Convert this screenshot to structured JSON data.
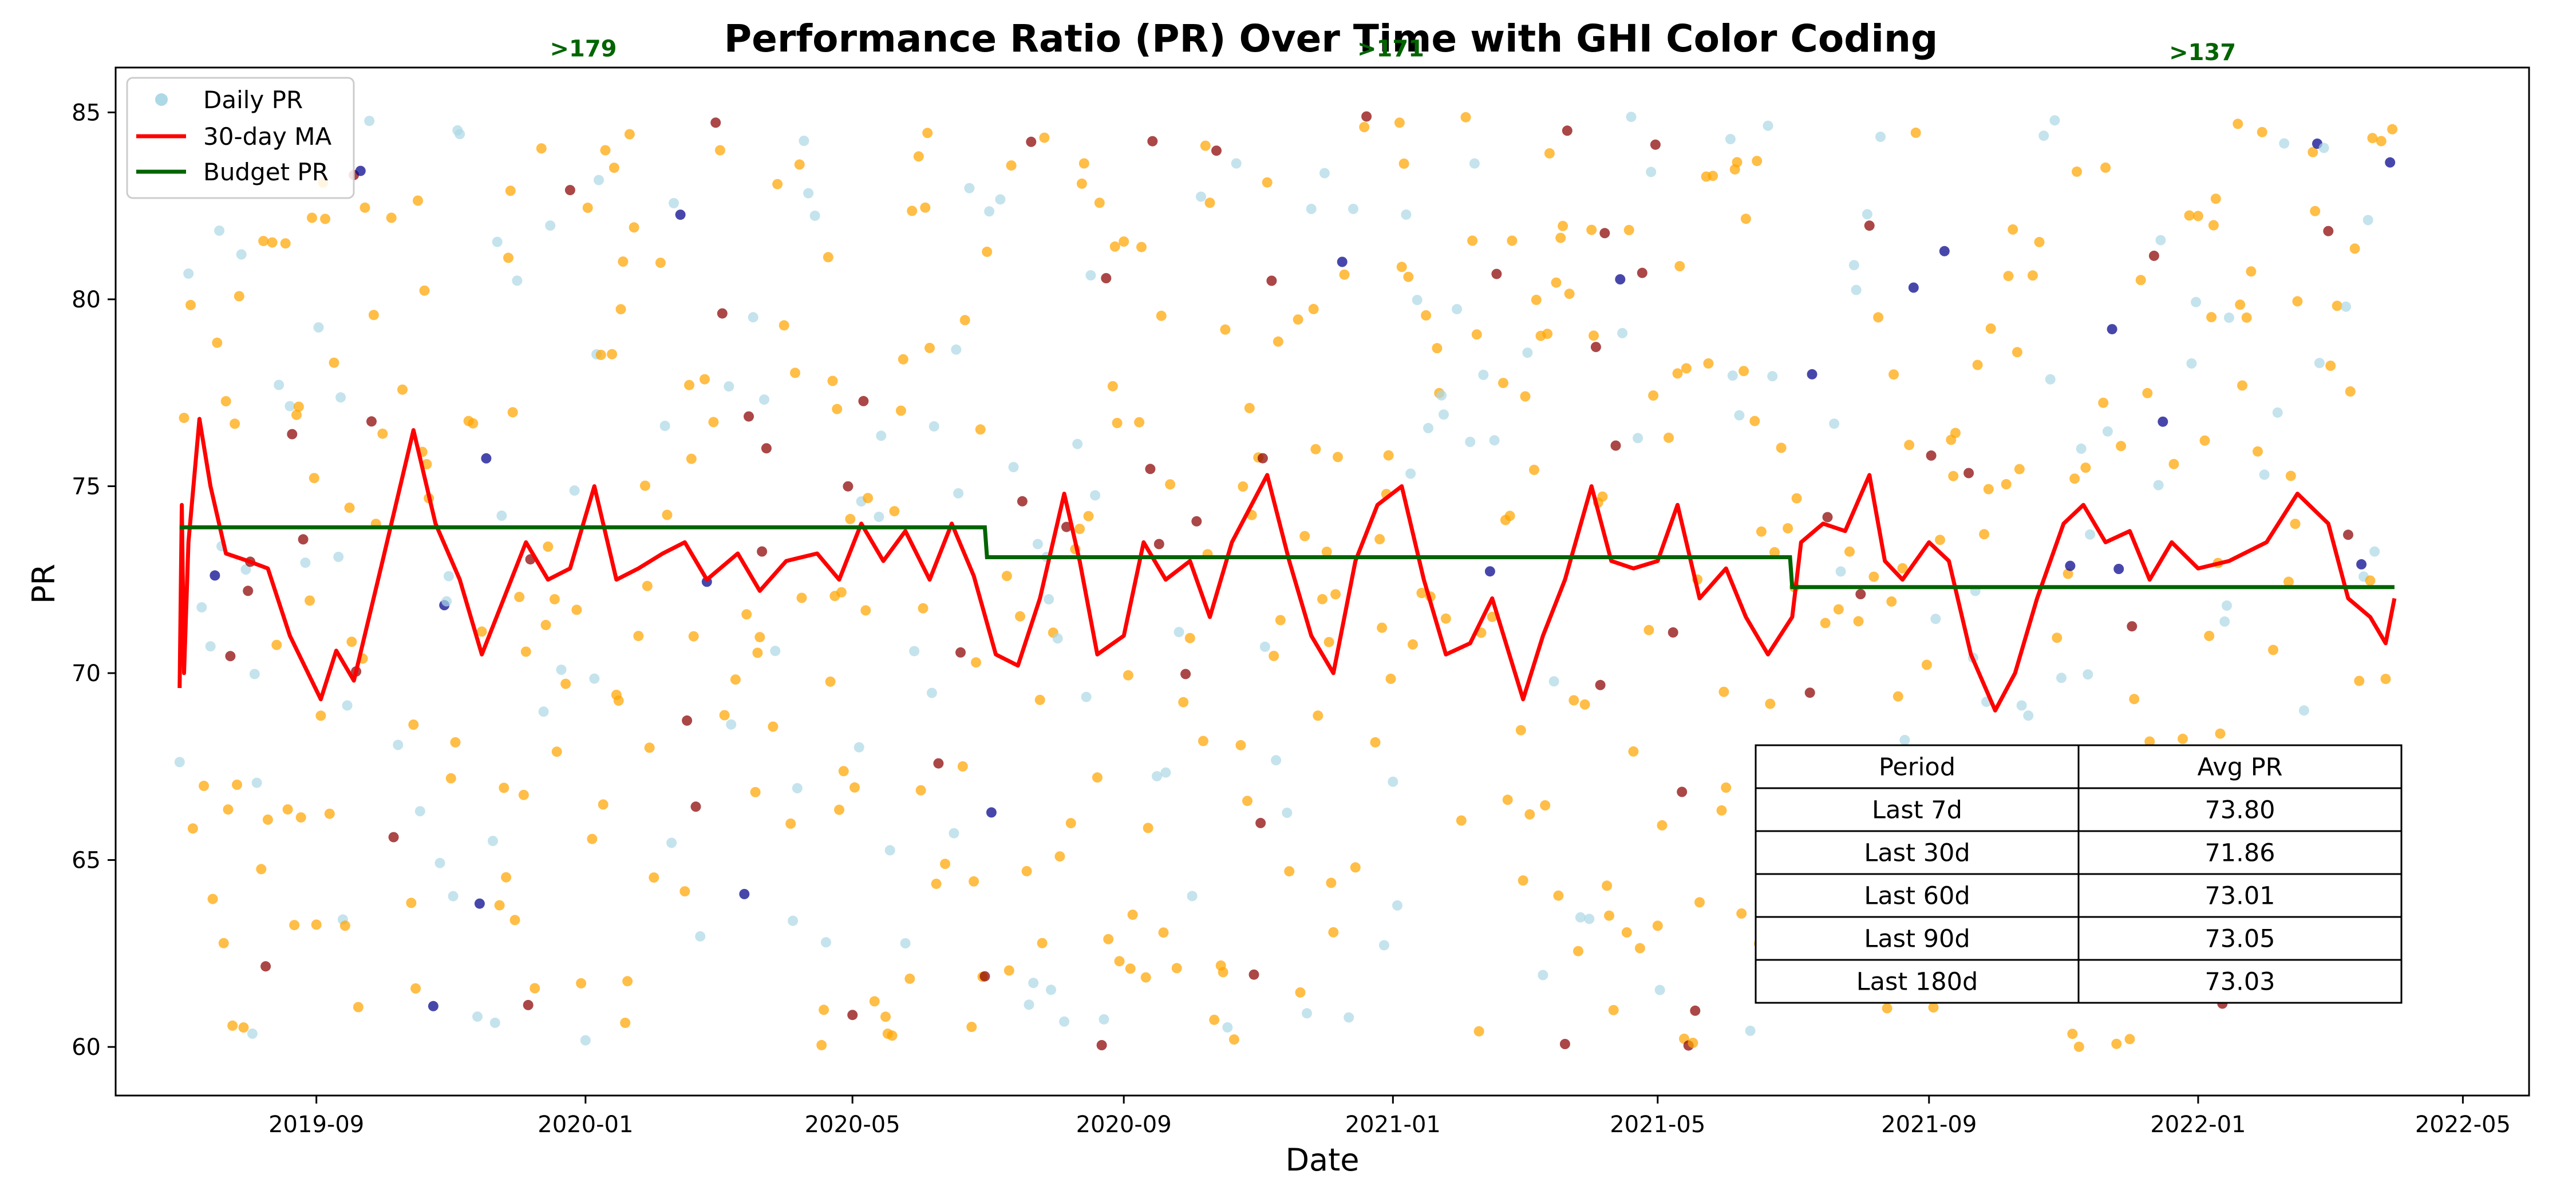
{
  "chart_data": {
    "type": "scatter",
    "title": "Performance Ratio (PR) Over Time with GHI Color Coding",
    "xlabel": "Date",
    "ylabel": "PR",
    "xlim": [
      "2019-06-02",
      "2022-05-31"
    ],
    "ylim": [
      58.7,
      86.2
    ],
    "x_ticks": [
      "2019-09",
      "2020-01",
      "2020-05",
      "2020-09",
      "2021-01",
      "2021-05",
      "2021-09",
      "2022-01",
      "2022-05"
    ],
    "y_ticks": [
      60,
      65,
      70,
      75,
      80,
      85
    ],
    "date_range": [
      "2019-07-01",
      "2022-03-31"
    ],
    "scatter_colors": {
      "low_ghi": "#add8e6",
      "mid_ghi": "#ffa500",
      "high_ghi": "#8b0000",
      "very_high_ghi": "#00008b"
    },
    "series": [
      {
        "name": "Daily PR",
        "type": "scatter",
        "color": "#add8e6",
        "range": [
          60,
          85
        ]
      },
      {
        "name": "30-day MA",
        "type": "line",
        "color": "#ff0000",
        "points": [
          [
            "2019-07-01",
            69.6
          ],
          [
            "2019-07-02",
            74.5
          ],
          [
            "2019-07-03",
            70.0
          ],
          [
            "2019-07-05",
            73.5
          ],
          [
            "2019-07-10",
            76.8
          ],
          [
            "2019-07-15",
            75.0
          ],
          [
            "2019-07-22",
            73.2
          ],
          [
            "2019-08-01",
            73.0
          ],
          [
            "2019-08-10",
            72.8
          ],
          [
            "2019-08-20",
            71.0
          ],
          [
            "2019-09-03",
            69.3
          ],
          [
            "2019-09-10",
            70.6
          ],
          [
            "2019-09-18",
            69.8
          ],
          [
            "2019-10-01",
            73.0
          ],
          [
            "2019-10-15",
            76.5
          ],
          [
            "2019-10-25",
            74.0
          ],
          [
            "2019-11-05",
            72.5
          ],
          [
            "2019-11-15",
            70.5
          ],
          [
            "2019-11-25",
            72.0
          ],
          [
            "2019-12-05",
            73.5
          ],
          [
            "2019-12-15",
            72.5
          ],
          [
            "2019-12-25",
            72.8
          ],
          [
            "2020-01-05",
            75.0
          ],
          [
            "2020-01-15",
            72.5
          ],
          [
            "2020-01-25",
            72.8
          ],
          [
            "2020-02-05",
            73.2
          ],
          [
            "2020-02-15",
            73.5
          ],
          [
            "2020-02-25",
            72.5
          ],
          [
            "2020-03-10",
            73.2
          ],
          [
            "2020-03-20",
            72.2
          ],
          [
            "2020-04-01",
            73.0
          ],
          [
            "2020-04-15",
            73.2
          ],
          [
            "2020-04-25",
            72.5
          ],
          [
            "2020-05-05",
            74.0
          ],
          [
            "2020-05-15",
            73.0
          ],
          [
            "2020-05-25",
            73.8
          ],
          [
            "2020-06-05",
            72.5
          ],
          [
            "2020-06-15",
            74.0
          ],
          [
            "2020-06-25",
            72.6
          ],
          [
            "2020-07-05",
            70.5
          ],
          [
            "2020-07-15",
            70.2
          ],
          [
            "2020-07-25",
            72.0
          ],
          [
            "2020-08-05",
            74.8
          ],
          [
            "2020-08-12",
            73.0
          ],
          [
            "2020-08-20",
            70.5
          ],
          [
            "2020-09-01",
            71.0
          ],
          [
            "2020-09-10",
            73.5
          ],
          [
            "2020-09-20",
            72.5
          ],
          [
            "2020-10-01",
            73.0
          ],
          [
            "2020-10-10",
            71.5
          ],
          [
            "2020-10-20",
            73.5
          ],
          [
            "2020-11-05",
            75.3
          ],
          [
            "2020-11-15",
            73.0
          ],
          [
            "2020-11-25",
            71.0
          ],
          [
            "2020-12-05",
            70.0
          ],
          [
            "2020-12-15",
            73.0
          ],
          [
            "2020-12-25",
            74.5
          ],
          [
            "2021-01-05",
            75.0
          ],
          [
            "2021-01-15",
            72.5
          ],
          [
            "2021-01-25",
            70.5
          ],
          [
            "2021-02-05",
            70.8
          ],
          [
            "2021-02-15",
            72.0
          ],
          [
            "2021-03-01",
            69.3
          ],
          [
            "2021-03-10",
            71.0
          ],
          [
            "2021-03-20",
            72.5
          ],
          [
            "2021-04-01",
            75.0
          ],
          [
            "2021-04-10",
            73.0
          ],
          [
            "2021-04-20",
            72.8
          ],
          [
            "2021-05-01",
            73.0
          ],
          [
            "2021-05-10",
            74.5
          ],
          [
            "2021-05-20",
            72.0
          ],
          [
            "2021-06-01",
            72.8
          ],
          [
            "2021-06-10",
            71.5
          ],
          [
            "2021-06-20",
            70.5
          ],
          [
            "2021-07-01",
            71.5
          ],
          [
            "2021-07-05",
            73.5
          ],
          [
            "2021-07-15",
            74.0
          ],
          [
            "2021-07-25",
            73.8
          ],
          [
            "2021-08-05",
            75.3
          ],
          [
            "2021-08-12",
            73.0
          ],
          [
            "2021-08-20",
            72.5
          ],
          [
            "2021-09-01",
            73.5
          ],
          [
            "2021-09-10",
            73.0
          ],
          [
            "2021-09-20",
            70.5
          ],
          [
            "2021-10-01",
            69.0
          ],
          [
            "2021-10-10",
            70.0
          ],
          [
            "2021-10-20",
            72.0
          ],
          [
            "2021-11-01",
            74.0
          ],
          [
            "2021-11-10",
            74.5
          ],
          [
            "2021-11-20",
            73.5
          ],
          [
            "2021-12-01",
            73.8
          ],
          [
            "2021-12-10",
            72.5
          ],
          [
            "2021-12-20",
            73.5
          ],
          [
            "2022-01-01",
            72.8
          ],
          [
            "2022-01-15",
            73.0
          ],
          [
            "2022-02-01",
            73.5
          ],
          [
            "2022-02-15",
            74.8
          ],
          [
            "2022-03-01",
            74.0
          ],
          [
            "2022-03-10",
            72.0
          ],
          [
            "2022-03-20",
            71.5
          ],
          [
            "2022-03-27",
            70.8
          ],
          [
            "2022-03-31",
            72.0
          ]
        ]
      },
      {
        "name": "Budget PR",
        "type": "step",
        "color": "#006400",
        "points": [
          [
            "2019-07-01",
            73.9
          ],
          [
            "2020-06-30",
            73.9
          ],
          [
            "2020-07-01",
            73.1
          ],
          [
            "2021-06-30",
            73.1
          ],
          [
            "2021-07-01",
            72.3
          ],
          [
            "2022-03-31",
            72.3
          ]
        ]
      }
    ],
    "annotations": [
      {
        "text": ">179",
        "x": "2019-12-31",
        "y": 86.5
      },
      {
        "text": ">171",
        "x": "2020-12-31",
        "y": 86.5
      },
      {
        "text": ">137",
        "x": "2022-01-03",
        "y": 86.4
      }
    ],
    "table": {
      "columns": [
        "Period",
        "Avg PR"
      ],
      "rows": [
        [
          "Last 7d",
          "73.80"
        ],
        [
          "Last 30d",
          "71.86"
        ],
        [
          "Last 60d",
          "73.01"
        ],
        [
          "Last 90d",
          "73.05"
        ],
        [
          "Last 180d",
          "73.03"
        ]
      ]
    },
    "legend": {
      "location": "upper left",
      "entries": [
        "Daily PR",
        "30-day MA",
        "Budget PR"
      ]
    }
  }
}
